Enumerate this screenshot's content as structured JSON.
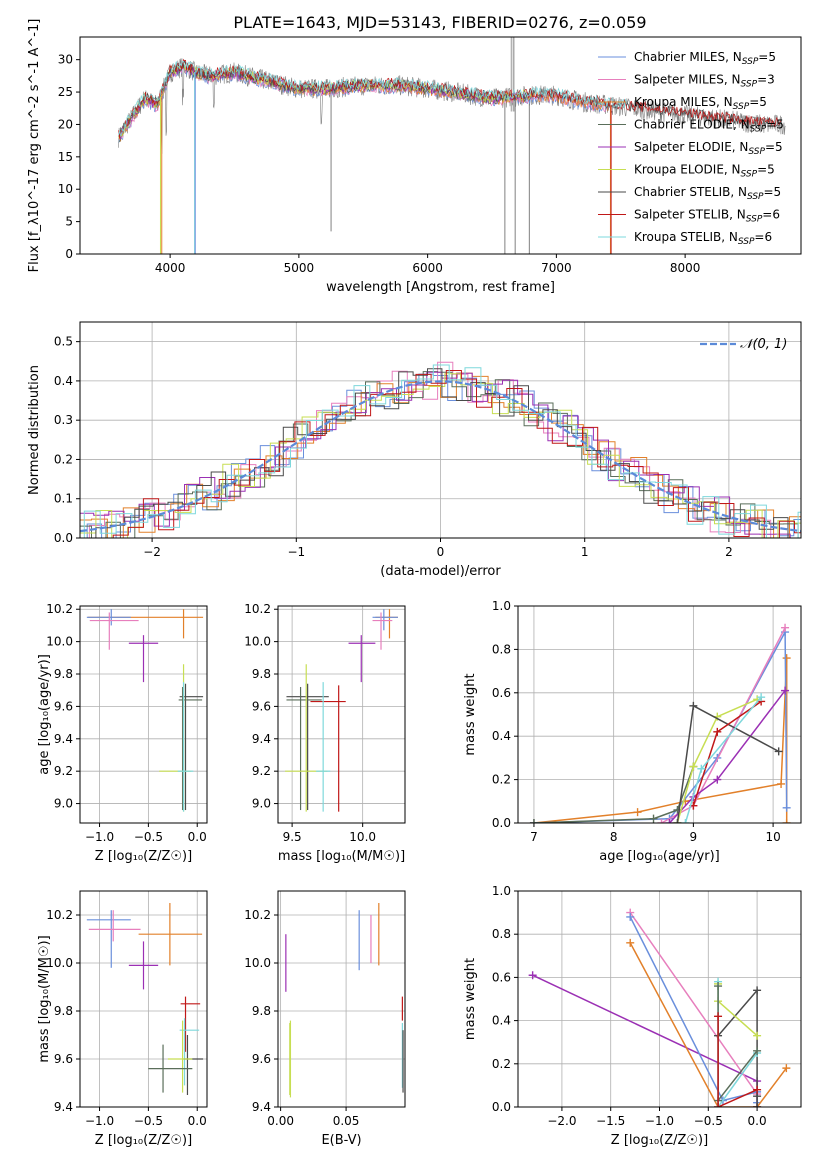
{
  "title": "PLATE=1643, MJD=53143, FIBERID=0276, z=0.059",
  "colors": {
    "chabrier_miles": "#6a8fdc",
    "salpeter_miles": "#e77fbd",
    "kroupa_miles": "#e2802a",
    "chabrier_elodie": "#5a6e5a",
    "salpeter_elodie": "#9b30b4",
    "kroupa_elodie": "#c7de52",
    "chabrier_stelib": "#4a4a4a",
    "salpeter_stelib": "#c01818",
    "kroupa_stelib": "#7ed8dc",
    "data": "#808080",
    "gaussian": "#5b8ad8",
    "grid": "#b0b0b0"
  },
  "chart_data": [
    {
      "type": "line",
      "name": "spectrum",
      "xlabel": "wavelength [Angstrom, rest frame]",
      "ylabel": "Flux [f_λ10^-17 erg cm^-2 s^-1 A^-1]",
      "xlim": [
        3300,
        8900
      ],
      "ylim": [
        0,
        33.5
      ],
      "xticks": [
        "4000",
        "5000",
        "6000",
        "7000",
        "8000"
      ],
      "yticks": [
        "0",
        "5",
        "10",
        "15",
        "20",
        "25",
        "30"
      ],
      "legend_position": "top-right",
      "legend": [
        {
          "label": "Chabrier MILES, N",
          "sub": "SSP",
          "tail": "=5"
        },
        {
          "label": "Salpeter MILES, N",
          "sub": "SSP",
          "tail": "=3"
        },
        {
          "label": "Kroupa MILES, N",
          "sub": "SSP",
          "tail": "=5"
        },
        {
          "label": "Chabrier ELODIE, N",
          "sub": "SSP",
          "tail": "=5"
        },
        {
          "label": "Salpeter ELODIE, N",
          "sub": "SSP",
          "tail": "=5"
        },
        {
          "label": "Kroupa ELODIE, N",
          "sub": "SSP",
          "tail": "=5"
        },
        {
          "label": "Chabrier STELIB, N",
          "sub": "SSP",
          "tail": "=5"
        },
        {
          "label": "Salpeter STELIB, N",
          "sub": "SSP",
          "tail": "=6"
        },
        {
          "label": "Kroupa STELIB, N",
          "sub": "SSP",
          "tail": "=6"
        }
      ],
      "continuum": [
        [
          3600,
          18
        ],
        [
          3700,
          21
        ],
        [
          3800,
          24
        ],
        [
          3900,
          23
        ],
        [
          4000,
          28
        ],
        [
          4100,
          29
        ],
        [
          4200,
          28
        ],
        [
          4300,
          27.5
        ],
        [
          4500,
          28
        ],
        [
          4700,
          27
        ],
        [
          4900,
          26
        ],
        [
          5000,
          25.5
        ],
        [
          5200,
          25.5
        ],
        [
          5500,
          26
        ],
        [
          5800,
          26
        ],
        [
          6000,
          25.5
        ],
        [
          6200,
          25
        ],
        [
          6500,
          24
        ],
        [
          6800,
          24.5
        ],
        [
          7000,
          24.5
        ],
        [
          7200,
          23.5
        ],
        [
          7400,
          23
        ],
        [
          7600,
          22.5
        ],
        [
          7800,
          22
        ],
        [
          8000,
          21.5
        ],
        [
          8200,
          21
        ],
        [
          8400,
          20.5
        ],
        [
          8600,
          20
        ],
        [
          8780,
          20
        ]
      ]
    },
    {
      "type": "line",
      "name": "residuals",
      "xlabel": "(data-model)/error",
      "ylabel": "Normed distribution",
      "xlim": [
        -2.5,
        2.5
      ],
      "ylim": [
        0,
        0.55
      ],
      "xticks": [
        "−2",
        "−1",
        "0",
        "1",
        "2"
      ],
      "yticks": [
        "0.0",
        "0.1",
        "0.2",
        "0.3",
        "0.4",
        "0.5"
      ],
      "legend_label": "𝒩(0, 1)",
      "legend_position": "top-right"
    },
    {
      "type": "scatter",
      "name": "age-vs-Z",
      "xlabel": "Z [log₁₀(Z/Z☉)]",
      "ylabel": "age  [log₁₀(age/yr)]",
      "xlim": [
        -1.2,
        0.1
      ],
      "ylim": [
        8.88,
        10.22
      ],
      "xticks": [
        "−1.0",
        "−0.5",
        "0.0"
      ],
      "yticks": [
        "9.0",
        "9.2",
        "9.4",
        "9.6",
        "9.8",
        "10.0",
        "10.2"
      ],
      "points": [
        {
          "c": "kroupa_miles",
          "x": -0.14,
          "xe": [
            0.98,
            0.2
          ],
          "y": 10.15,
          "ye": [
            0.13,
            0.05
          ]
        },
        {
          "c": "chabrier_miles",
          "x": -0.88,
          "xe": [
            0.25,
            0.2
          ],
          "y": 10.15,
          "ye": [
            0.05,
            0.05
          ]
        },
        {
          "c": "salpeter_miles",
          "x": -0.9,
          "xe": [
            0.2,
            0.3
          ],
          "y": 10.13,
          "ye": [
            0.18,
            0.05
          ]
        },
        {
          "c": "salpeter_elodie",
          "x": -0.55,
          "xe": [
            0.15,
            0.15
          ],
          "y": 9.99,
          "ye": [
            0.24,
            0.05
          ]
        },
        {
          "c": "chabrier_stelib",
          "x": -0.12,
          "xe": [
            0.06,
            0.18
          ],
          "y": 9.66,
          "ye": [
            0.7,
            0.08
          ]
        },
        {
          "c": "chabrier_elodie",
          "x": -0.15,
          "xe": [
            0.04,
            0.2
          ],
          "y": 9.64,
          "ye": [
            0.68,
            0.08
          ]
        },
        {
          "c": "kroupa_elodie",
          "x": -0.14,
          "xe": [
            0.25,
            0.08
          ],
          "y": 9.2,
          "ye": [
            0.25,
            0.66
          ]
        },
        {
          "c": "kroupa_stelib",
          "x": -0.14,
          "xe": [
            0.06,
            0.1
          ],
          "y": 9.2,
          "ye": [
            0.25,
            0.55
          ]
        }
      ]
    },
    {
      "type": "scatter",
      "name": "age-vs-mass",
      "xlabel": "mass [log₁₀(M/M☉)]",
      "ylabel": "",
      "xlim": [
        9.4,
        10.3
      ],
      "ylim": [
        8.88,
        10.22
      ],
      "xticks": [
        "9.5",
        "10.0"
      ],
      "yticks": [
        "9.0",
        "9.2",
        "9.4",
        "9.6",
        "9.8",
        "10.0",
        "10.2"
      ],
      "points": [
        {
          "c": "kroupa_miles",
          "x": 10.19,
          "xe": [
            0.1,
            0.06
          ],
          "y": 10.15,
          "ye": [
            0.13,
            0.05
          ]
        },
        {
          "c": "chabrier_miles",
          "x": 10.15,
          "xe": [
            0.08,
            0.1
          ],
          "y": 10.15,
          "ye": [
            0.08,
            0.05
          ]
        },
        {
          "c": "salpeter_miles",
          "x": 10.13,
          "xe": [
            0.06,
            0.08
          ],
          "y": 10.13,
          "ye": [
            0.18,
            0.05
          ]
        },
        {
          "c": "salpeter_elodie",
          "x": 9.99,
          "xe": [
            0.09,
            0.1
          ],
          "y": 9.99,
          "ye": [
            0.24,
            0.05
          ]
        },
        {
          "c": "chabrier_stelib",
          "x": 9.61,
          "xe": [
            0.15,
            0.15
          ],
          "y": 9.66,
          "ye": [
            0.7,
            0.08
          ]
        },
        {
          "c": "chabrier_elodie",
          "x": 9.56,
          "xe": [
            0.1,
            0.15
          ],
          "y": 9.64,
          "ye": [
            0.68,
            0.08
          ]
        },
        {
          "c": "salpeter_stelib",
          "x": 9.83,
          "xe": [
            0.2,
            0.05
          ],
          "y": 9.63,
          "ye": [
            0.68,
            0.1
          ]
        },
        {
          "c": "kroupa_elodie",
          "x": 9.6,
          "xe": [
            0.15,
            0.15
          ],
          "y": 9.2,
          "ye": [
            0.25,
            0.66
          ]
        },
        {
          "c": "kroupa_stelib",
          "x": 9.72,
          "xe": [
            0.05,
            0.05
          ],
          "y": 9.2,
          "ye": [
            0.25,
            0.55
          ]
        }
      ]
    },
    {
      "type": "line",
      "name": "weight-vs-age",
      "xlabel": "age  [log₁₀(age/yr)]",
      "ylabel": "mass weight",
      "xlim": [
        6.8,
        10.35
      ],
      "ylim": [
        0,
        1
      ],
      "xticks": [
        "7",
        "8",
        "9",
        "10"
      ],
      "yticks": [
        "0.0",
        "0.2",
        "0.4",
        "0.6",
        "0.8",
        "1.0"
      ],
      "series": [
        {
          "c": "kroupa_miles",
          "x": [
            7.0,
            8.3,
            8.9,
            10.1,
            10.17,
            10.17
          ],
          "y": [
            0.0,
            0.05,
            0.1,
            0.18,
            0.76,
            0.0
          ]
        },
        {
          "c": "chabrier_miles",
          "x": [
            7.0,
            8.7,
            9.3,
            10.15,
            10.17
          ],
          "y": [
            0.0,
            0.02,
            0.3,
            0.88,
            0.07
          ]
        },
        {
          "c": "salpeter_miles",
          "x": [
            8.6,
            9.0,
            10.15
          ],
          "y": [
            0.0,
            0.08,
            0.9
          ]
        },
        {
          "c": "chabrier_elodie",
          "x": [
            7.0,
            8.5,
            8.8,
            9.0
          ],
          "y": [
            0.0,
            0.02,
            0.06,
            0.26
          ]
        },
        {
          "c": "salpeter_elodie",
          "x": [
            8.7,
            9.0,
            9.3,
            10.15
          ],
          "y": [
            0.0,
            0.12,
            0.2,
            0.61
          ]
        },
        {
          "c": "kroupa_elodie",
          "x": [
            8.8,
            9.0,
            9.3,
            9.8
          ],
          "y": [
            0.0,
            0.26,
            0.49,
            0.57
          ]
        },
        {
          "c": "chabrier_stelib",
          "x": [
            8.8,
            9.0,
            10.07
          ],
          "y": [
            0.0,
            0.54,
            0.33
          ]
        },
        {
          "c": "salpeter_stelib",
          "x": [
            9.0,
            9.3,
            9.85
          ],
          "y": [
            0.08,
            0.42,
            0.56
          ]
        },
        {
          "c": "kroupa_stelib",
          "x": [
            8.9,
            9.1,
            9.85
          ],
          "y": [
            0.0,
            0.25,
            0.58
          ]
        }
      ]
    },
    {
      "type": "scatter",
      "name": "mass-vs-Z",
      "xlabel": "Z [log₁₀(Z/Z☉)]",
      "ylabel": "mass [log₁₀(M/M☉)]",
      "xlim": [
        -1.2,
        0.1
      ],
      "ylim": [
        9.4,
        10.3
      ],
      "xticks": [
        "−1.0",
        "−0.5",
        "0.0"
      ],
      "yticks": [
        "9.4",
        "9.6",
        "9.8",
        "10.0",
        "10.2"
      ],
      "points": [
        {
          "c": "kroupa_miles",
          "x": -0.28,
          "xe": [
            0.32,
            0.33
          ],
          "y": 10.12,
          "ye": [
            0.13,
            0.13
          ]
        },
        {
          "c": "chabrier_miles",
          "x": -0.88,
          "xe": [
            0.25,
            0.2
          ],
          "y": 10.18,
          "ye": [
            0.2,
            0.04
          ]
        },
        {
          "c": "salpeter_miles",
          "x": -0.86,
          "xe": [
            0.25,
            0.28
          ],
          "y": 10.14,
          "ye": [
            0.05,
            0.08
          ]
        },
        {
          "c": "salpeter_elodie",
          "x": -0.55,
          "xe": [
            0.15,
            0.15
          ],
          "y": 9.99,
          "ye": [
            0.1,
            0.1
          ]
        },
        {
          "c": "salpeter_stelib",
          "x": -0.12,
          "xe": [
            0.05,
            0.15
          ],
          "y": 9.83,
          "ye": [
            0.2,
            0.03
          ]
        },
        {
          "c": "kroupa_stelib",
          "x": -0.13,
          "xe": [
            0.05,
            0.15
          ],
          "y": 9.72,
          "ye": [
            0.23,
            0.05
          ]
        },
        {
          "c": "chabrier_stelib",
          "x": -0.1,
          "xe": [
            0.04,
            0.16
          ],
          "y": 9.6,
          "ye": [
            0.15,
            0.1
          ]
        },
        {
          "c": "kroupa_elodie",
          "x": -0.15,
          "xe": [
            0.15,
            0.1
          ],
          "y": 9.6,
          "ye": [
            0.14,
            0.16
          ]
        },
        {
          "c": "chabrier_elodie",
          "x": -0.35,
          "xe": [
            0.15,
            0.3
          ],
          "y": 9.56,
          "ye": [
            0.1,
            0.1
          ]
        }
      ]
    },
    {
      "type": "scatter",
      "name": "mass-vs-EBV",
      "xlabel": "E(B-V)",
      "ylabel": "",
      "xlim": [
        -0.002,
        0.095
      ],
      "ylim": [
        9.4,
        10.3
      ],
      "xticks": [
        "0.00",
        "0.05"
      ],
      "yticks": [
        "9.4",
        "9.6",
        "9.8",
        "10.0",
        "10.2"
      ],
      "vlines": [
        {
          "c": "salpeter_elodie",
          "x": 0.004,
          "y": [
            9.88,
            10.12
          ]
        },
        {
          "c": "kroupa_elodie",
          "x": 0.007,
          "y": [
            9.45,
            9.75
          ]
        },
        {
          "c": "kroupa_elodie",
          "x": 0.0075,
          "y": [
            9.44,
            9.76
          ]
        },
        {
          "c": "chabrier_miles",
          "x": 0.06,
          "y": [
            9.97,
            10.22
          ]
        },
        {
          "c": "salpeter_miles",
          "x": 0.069,
          "y": [
            10.0,
            10.2
          ]
        },
        {
          "c": "kroupa_miles",
          "x": 0.075,
          "y": [
            9.99,
            10.25
          ]
        },
        {
          "c": "salpeter_stelib",
          "x": 0.093,
          "y": [
            9.76,
            9.86
          ]
        },
        {
          "c": "kroupa_stelib",
          "x": 0.093,
          "y": [
            9.48,
            9.75
          ]
        },
        {
          "c": "chabrier_stelib",
          "x": 0.0935,
          "y": [
            9.46,
            9.72
          ]
        }
      ]
    },
    {
      "type": "line",
      "name": "weight-vs-Z",
      "xlabel": "Z [log₁₀(Z/Z☉)]",
      "ylabel": "mass weight",
      "xlim": [
        -2.45,
        0.45
      ],
      "ylim": [
        0,
        1
      ],
      "xticks": [
        "−2.0",
        "−1.5",
        "−1.0",
        "−0.5",
        "0.0"
      ],
      "yticks": [
        "0.0",
        "0.2",
        "0.4",
        "0.6",
        "0.8",
        "1.0"
      ],
      "series": [
        {
          "c": "salpeter_elodie",
          "x": [
            -2.3,
            0.0,
            0.0
          ],
          "y": [
            0.61,
            0.12,
            0.0
          ]
        },
        {
          "c": "salpeter_miles",
          "x": [
            -1.3,
            0.0,
            0.0
          ],
          "y": [
            0.9,
            0.06,
            0.0
          ]
        },
        {
          "c": "chabrier_miles",
          "x": [
            -1.3,
            -0.35,
            0.0,
            0.0
          ],
          "y": [
            0.88,
            0.03,
            0.07,
            0.02
          ]
        },
        {
          "c": "kroupa_miles",
          "x": [
            -1.3,
            -0.4,
            0.0,
            0.3
          ],
          "y": [
            0.76,
            0.0,
            0.0,
            0.18
          ]
        },
        {
          "c": "chabrier_stelib",
          "x": [
            -0.4,
            0.0,
            0.0,
            0.0
          ],
          "y": [
            0.33,
            0.54,
            0.0,
            0.05
          ]
        },
        {
          "c": "kroupa_elodie",
          "x": [
            -0.4,
            -0.4,
            0.0
          ],
          "y": [
            0.57,
            0.49,
            0.33
          ]
        },
        {
          "c": "kroupa_stelib",
          "x": [
            -0.4,
            -0.4,
            0.0
          ],
          "y": [
            0.58,
            0.0,
            0.25
          ]
        },
        {
          "c": "chabrier_elodie",
          "x": [
            -0.4,
            -0.4,
            0.0
          ],
          "y": [
            0.56,
            0.03,
            0.26
          ]
        },
        {
          "c": "salpeter_stelib",
          "x": [
            -0.4,
            -0.4,
            0.0
          ],
          "y": [
            0.42,
            0.0,
            0.08
          ]
        }
      ]
    }
  ]
}
